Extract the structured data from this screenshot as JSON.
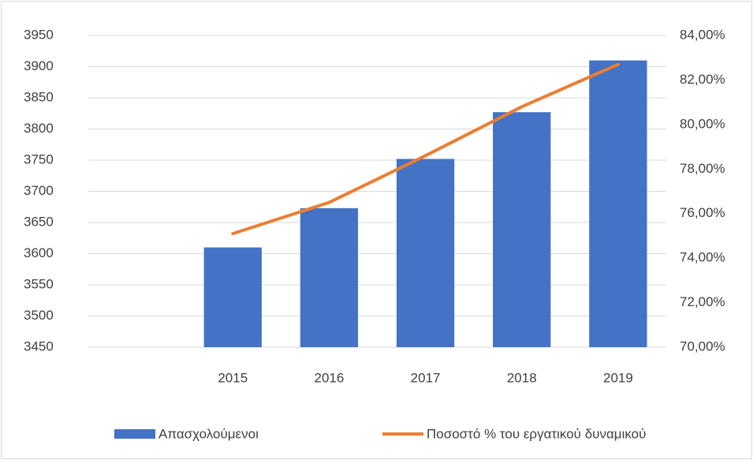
{
  "chart_data": {
    "type": "bar",
    "categories": [
      null,
      "2015",
      "2016",
      "2017",
      "2018",
      "2019"
    ],
    "series": [
      {
        "name": "Απασχολούμενοι",
        "type": "bar",
        "color": "#4472c4",
        "values": [
          null,
          3610,
          3673,
          3752,
          3827,
          3910
        ]
      },
      {
        "name": "Ποσοστό % του εργατικού δυναμικού",
        "type": "line",
        "axis": "y2",
        "color": "#ed7d31",
        "values": [
          null,
          75.1,
          76.5,
          78.6,
          80.8,
          82.7
        ]
      }
    ],
    "ylim": [
      3450,
      3950
    ],
    "yticks": [
      3450,
      3500,
      3550,
      3600,
      3650,
      3700,
      3750,
      3800,
      3850,
      3900,
      3950
    ],
    "y2lim": [
      70,
      84
    ],
    "y2ticks": [
      {
        "value": 70,
        "label": "70,00%"
      },
      {
        "value": 72,
        "label": "72,00%"
      },
      {
        "value": 74,
        "label": "74,00%"
      },
      {
        "value": 76,
        "label": "76,00%"
      },
      {
        "value": 78,
        "label": "78,00%"
      },
      {
        "value": 80,
        "label": "80,00%"
      },
      {
        "value": 82,
        "label": "82,00%"
      },
      {
        "value": 84,
        "label": "84,00%"
      }
    ],
    "grid": true,
    "legend": "bottom"
  }
}
